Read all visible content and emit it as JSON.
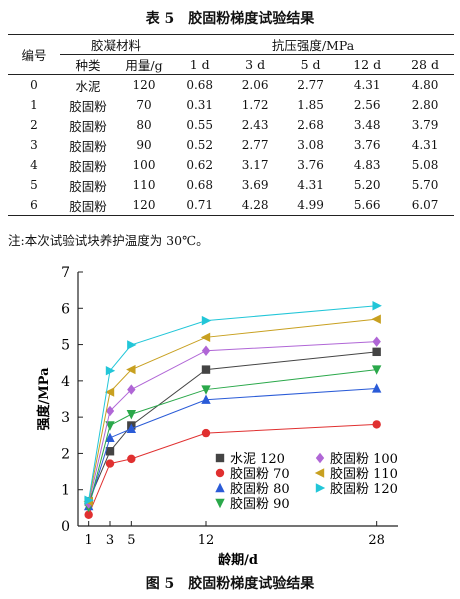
{
  "table": {
    "title": "表 5　胶固粉梯度试验结果",
    "headers": {
      "id": "编号",
      "material": "胶凝材料",
      "kind": "种类",
      "dosage": "用量/g",
      "strength": "抗压强度/MPa",
      "ages": [
        "1 d",
        "3 d",
        "5 d",
        "12 d",
        "28 d"
      ]
    },
    "rows": [
      {
        "id": "0",
        "kind": "水泥",
        "dosage": "120",
        "vals": [
          "0.68",
          "2.06",
          "2.77",
          "4.31",
          "4.80"
        ]
      },
      {
        "id": "1",
        "kind": "胶固粉",
        "dosage": "70",
        "vals": [
          "0.31",
          "1.72",
          "1.85",
          "2.56",
          "2.80"
        ]
      },
      {
        "id": "2",
        "kind": "胶固粉",
        "dosage": "80",
        "vals": [
          "0.55",
          "2.43",
          "2.68",
          "3.48",
          "3.79"
        ]
      },
      {
        "id": "3",
        "kind": "胶固粉",
        "dosage": "90",
        "vals": [
          "0.52",
          "2.77",
          "3.08",
          "3.76",
          "4.31"
        ]
      },
      {
        "id": "4",
        "kind": "胶固粉",
        "dosage": "100",
        "vals": [
          "0.62",
          "3.17",
          "3.76",
          "4.83",
          "5.08"
        ]
      },
      {
        "id": "5",
        "kind": "胶固粉",
        "dosage": "110",
        "vals": [
          "0.68",
          "3.69",
          "4.31",
          "5.20",
          "5.70"
        ]
      },
      {
        "id": "6",
        "kind": "胶固粉",
        "dosage": "120",
        "vals": [
          "0.71",
          "4.28",
          "4.99",
          "5.66",
          "6.07"
        ]
      }
    ],
    "note": "注:本次试验试块养护温度为 30℃。"
  },
  "figure_title": "图 5　胶固粉梯度试验结果",
  "chart_data": {
    "type": "line",
    "xlabel": "龄期/d",
    "ylabel": "强度/MPa",
    "x": [
      1,
      3,
      5,
      12,
      28
    ],
    "x_ticks": [
      "1",
      "3",
      "5",
      "12",
      "28"
    ],
    "y_ticks": [
      "0",
      "1",
      "2",
      "3",
      "4",
      "5",
      "6",
      "7"
    ],
    "xlim": [
      0,
      30
    ],
    "ylim": [
      0,
      7
    ],
    "legend_position": "bottom-right",
    "series": [
      {
        "name": "水泥 120",
        "marker": "square",
        "color": "#444444",
        "values": [
          0.68,
          2.06,
          2.77,
          4.31,
          4.8
        ]
      },
      {
        "name": "胶固粉 70",
        "marker": "circle",
        "color": "#e03030",
        "values": [
          0.31,
          1.72,
          1.85,
          2.56,
          2.8
        ]
      },
      {
        "name": "胶固粉 80",
        "marker": "triangle-up",
        "color": "#2a5bd7",
        "values": [
          0.55,
          2.43,
          2.68,
          3.48,
          3.79
        ]
      },
      {
        "name": "胶固粉 90",
        "marker": "triangle-down",
        "color": "#2aa84a",
        "values": [
          0.52,
          2.77,
          3.08,
          3.76,
          4.31
        ]
      },
      {
        "name": "胶固粉 100",
        "marker": "diamond",
        "color": "#b066d6",
        "values": [
          0.62,
          3.17,
          3.76,
          4.83,
          5.08
        ]
      },
      {
        "name": "胶固粉 110",
        "marker": "triangle-left",
        "color": "#c8a020",
        "values": [
          0.68,
          3.69,
          4.31,
          5.2,
          5.7
        ]
      },
      {
        "name": "胶固粉 120",
        "marker": "triangle-right",
        "color": "#22c6d8",
        "values": [
          0.71,
          4.28,
          4.99,
          5.66,
          6.07
        ]
      }
    ]
  }
}
